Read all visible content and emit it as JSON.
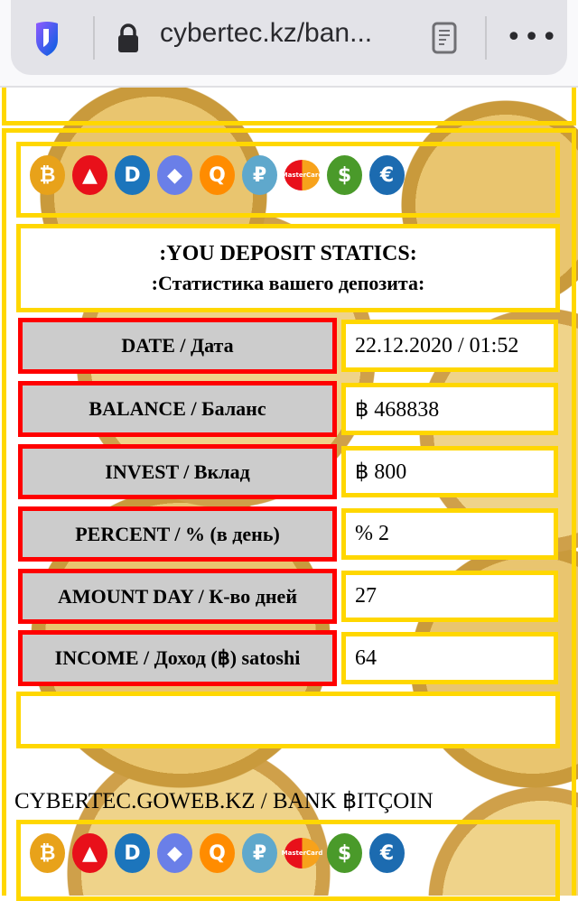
{
  "browser": {
    "url": "cybertec.kz/ban...",
    "icons": [
      "shield-icon",
      "lock-icon",
      "reader-icon",
      "more-icon"
    ]
  },
  "currency_icons": [
    {
      "name": "bitcoin",
      "glyph": "₿",
      "color": "#e8a21a"
    },
    {
      "name": "ark",
      "glyph": "▲",
      "color": "#e8101a"
    },
    {
      "name": "dash",
      "glyph": "D",
      "color": "#1c75bc"
    },
    {
      "name": "ethereum",
      "glyph": "◆",
      "color": "#6a7fe8"
    },
    {
      "name": "qiwi",
      "glyph": "Q",
      "color": "#ff8c00"
    },
    {
      "name": "ruble",
      "glyph": "₽",
      "color": "#5fa8cc"
    },
    {
      "name": "mastercard",
      "glyph": "MasterCard",
      "color": "#e8101a"
    },
    {
      "name": "dollar",
      "glyph": "$",
      "color": "#4a9a2a"
    },
    {
      "name": "euro",
      "glyph": "€",
      "color": "#1c6bb0"
    }
  ],
  "header": {
    "title_en": ":YOU DEPOSIT STATICS:",
    "title_ru": ":Статистика вашего депозита:"
  },
  "rows": [
    {
      "label": "DATE / Дата",
      "value": "22.12.2020 / 01:52"
    },
    {
      "label": "BALANCE / Баланс",
      "value": "฿ 468838"
    },
    {
      "label": "INVEST / Вклад",
      "value": "฿ 800"
    },
    {
      "label": "PERCENT / % (в день)",
      "value": "% 2"
    },
    {
      "label": "AMOUNT DAY / К-во дней",
      "value": "27"
    },
    {
      "label": "INCOME / Доход (฿) satoshi",
      "value": "64"
    }
  ],
  "footer": {
    "text": "CYBERTEC.GOWEB.KZ / BANK ฿ITÇOIN"
  },
  "colors": {
    "frame": "#ffd700",
    "label_border": "#ff0000",
    "label_bg": "#cccccc"
  }
}
